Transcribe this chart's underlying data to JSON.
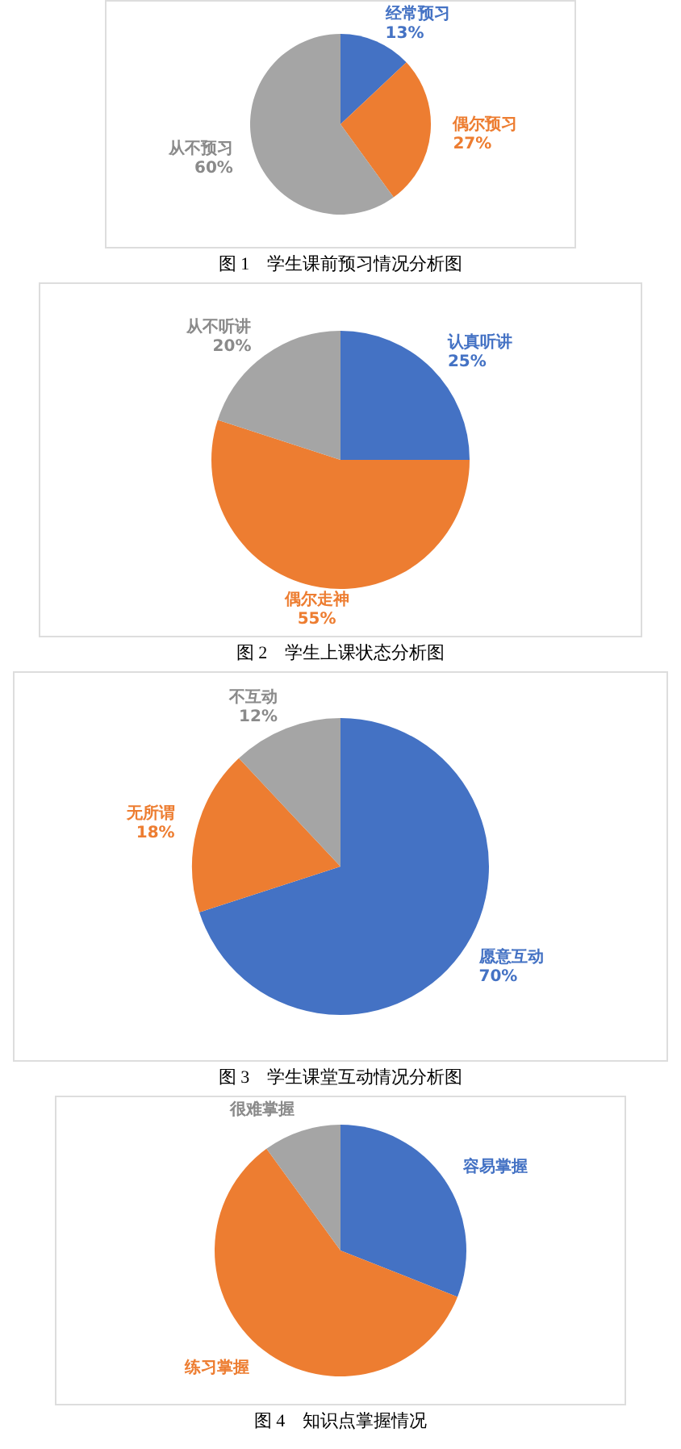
{
  "chart_data": [
    {
      "type": "pie",
      "title": "图 1　学生课前预习情况分析图",
      "categories": [
        "经常预习",
        "偶尔预习",
        "从不预习"
      ],
      "values": [
        13,
        27,
        60
      ],
      "value_labels": [
        "13%",
        "27%",
        "60%"
      ],
      "colors": [
        "#4472c4",
        "#ed7d31",
        "#a5a5a5"
      ],
      "legend": false
    },
    {
      "type": "pie",
      "title": "图 2　学生上课状态分析图",
      "categories": [
        "认真听讲",
        "偶尔走神",
        "从不听讲"
      ],
      "values": [
        25,
        55,
        20
      ],
      "value_labels": [
        "25%",
        "55%",
        "20%"
      ],
      "colors": [
        "#4472c4",
        "#ed7d31",
        "#a5a5a5"
      ],
      "legend": false
    },
    {
      "type": "pie",
      "title": "图 3　学生课堂互动情况分析图",
      "categories": [
        "愿意互动",
        "无所谓",
        "不互动"
      ],
      "values": [
        70,
        18,
        12
      ],
      "value_labels": [
        "70%",
        "18%",
        "12%"
      ],
      "colors": [
        "#4472c4",
        "#ed7d31",
        "#a5a5a5"
      ],
      "legend": false
    },
    {
      "type": "pie",
      "title": "图 4　知识点掌握情况",
      "categories": [
        "容易掌握",
        "练习掌握",
        "很难掌握"
      ],
      "values": [
        31,
        59,
        10
      ],
      "colors": [
        "#4472c4",
        "#ed7d31",
        "#a5a5a5"
      ],
      "legend": false
    }
  ]
}
